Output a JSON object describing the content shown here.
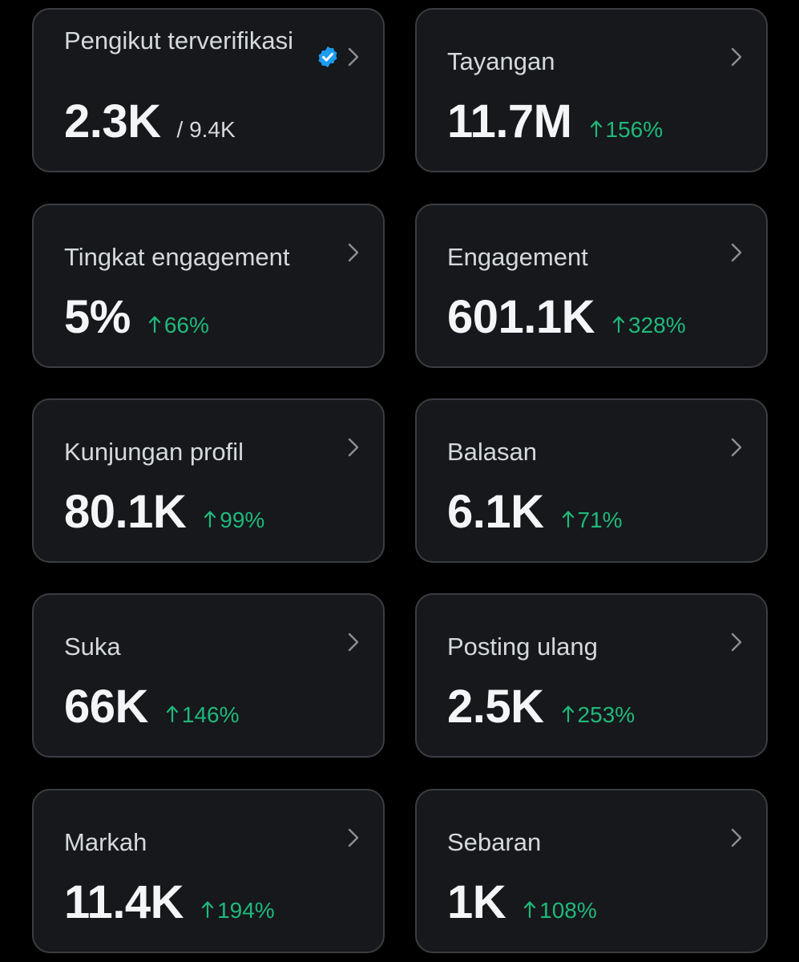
{
  "colors": {
    "background": "#000000",
    "card_background": "#16181c",
    "card_border": "#3a3d42",
    "positive_change": "#1fb97a",
    "verified_badge": "#1d9bf0"
  },
  "cards": [
    {
      "label": "Pengikut terverifikasi",
      "value": "2.3K",
      "suffix": "/ 9.4K",
      "icon": "verified-badge-icon"
    },
    {
      "label": "Tayangan",
      "value": "11.7M",
      "change": "156%",
      "direction": "up"
    },
    {
      "label": "Tingkat engagement",
      "value": "5%",
      "change": "66%",
      "direction": "up"
    },
    {
      "label": "Engagement",
      "value": "601.1K",
      "change": "328%",
      "direction": "up"
    },
    {
      "label": "Kunjungan profil",
      "value": "80.1K",
      "change": "99%",
      "direction": "up"
    },
    {
      "label": "Balasan",
      "value": "6.1K",
      "change": "71%",
      "direction": "up"
    },
    {
      "label": "Suka",
      "value": "66K",
      "change": "146%",
      "direction": "up"
    },
    {
      "label": "Posting ulang",
      "value": "2.5K",
      "change": "253%",
      "direction": "up"
    },
    {
      "label": "Markah",
      "value": "11.4K",
      "change": "194%",
      "direction": "up"
    },
    {
      "label": "Sebaran",
      "value": "1K",
      "change": "108%",
      "direction": "up"
    }
  ]
}
